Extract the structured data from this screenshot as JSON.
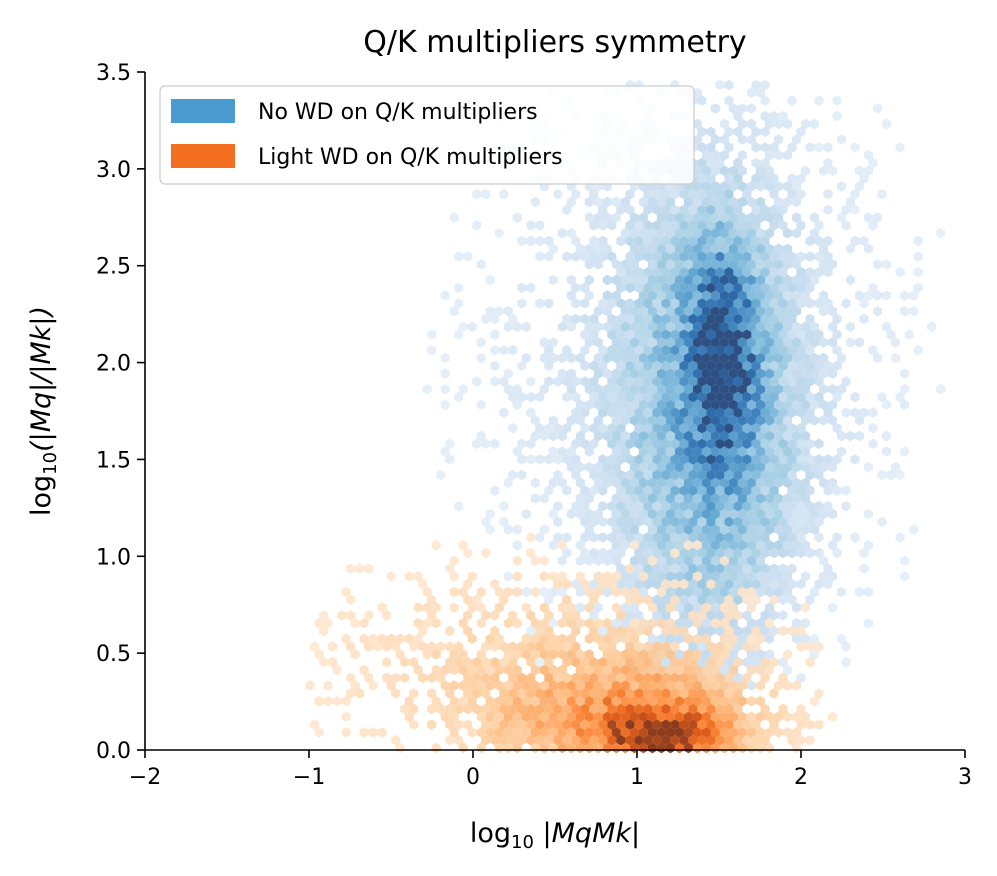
{
  "chart_data": {
    "type": "hexbin",
    "title": "Q/K multipliers symmetry",
    "xlabel": "log10 |MqMk|",
    "ylabel": "log10(|Mq|/|Mk|)",
    "xlim": [
      -2,
      3
    ],
    "ylim": [
      0,
      3.5
    ],
    "x_ticks": [
      -2,
      -1,
      0,
      1,
      2,
      3
    ],
    "x_tick_labels": [
      "−2",
      "−1",
      "0",
      "1",
      "2",
      "3"
    ],
    "y_ticks": [
      0,
      0.5,
      1,
      1.5,
      2,
      2.5,
      3,
      3.5
    ],
    "y_tick_labels": [
      "0.0",
      "0.5",
      "1.0",
      "1.5",
      "2.0",
      "2.5",
      "3.0",
      "3.5"
    ],
    "legend_position": "top-left",
    "series": [
      {
        "name": "No WD on Q/K multipliers",
        "color": "#4a9bd0",
        "colormap": "Blues",
        "density_peaks": [
          {
            "x": 1.52,
            "y": 2.0,
            "sx": 0.13,
            "sy": 0.34,
            "weight": 1.0
          },
          {
            "x": 1.45,
            "y": 1.7,
            "sx": 0.35,
            "sy": 0.75,
            "weight": 0.35
          },
          {
            "x": 1.3,
            "y": 2.0,
            "sx": 0.8,
            "sy": 0.9,
            "weight": 0.1
          }
        ],
        "extent": {
          "x": [
            -2.0,
            3.0
          ],
          "y": [
            0.3,
            3.45
          ]
        }
      },
      {
        "name": "Light WD on Q/K multipliers",
        "color": "#f36f1f",
        "colormap": "Oranges",
        "density_peaks": [
          {
            "x": 1.15,
            "y": 0.07,
            "sx": 0.2,
            "sy": 0.07,
            "weight": 1.0
          },
          {
            "x": 1.0,
            "y": 0.15,
            "sx": 0.45,
            "sy": 0.17,
            "weight": 0.4
          },
          {
            "x": 0.5,
            "y": 0.4,
            "sx": 0.85,
            "sy": 0.35,
            "weight": 0.12
          }
        ],
        "extent": {
          "x": [
            -1.0,
            2.2
          ],
          "y": [
            0.0,
            1.2
          ]
        }
      }
    ]
  }
}
